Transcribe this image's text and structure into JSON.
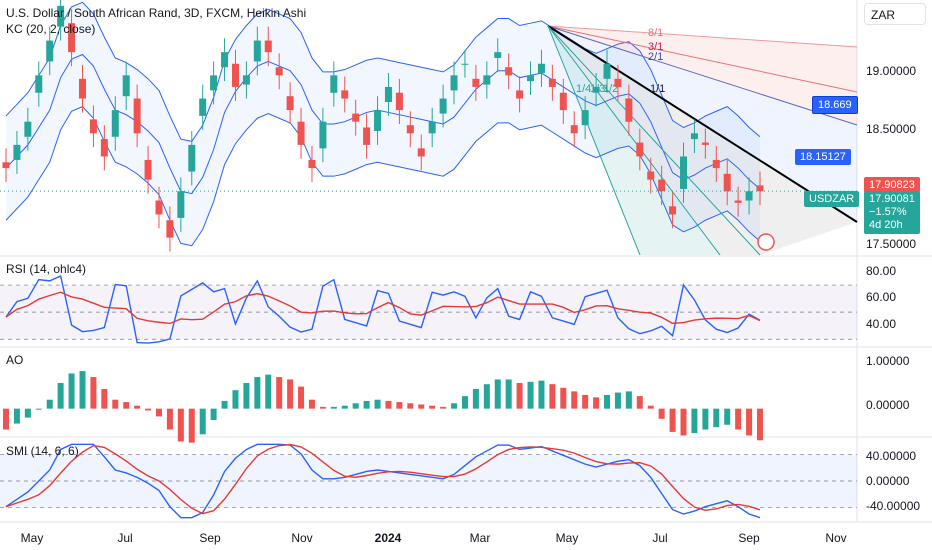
{
  "legend": {
    "title": "U.S. Dollar / South African Rand, 3D, FXCM, Heikin Ashi",
    "kc": "KC (20, 2, close)"
  },
  "currency_box": "ZAR",
  "price_axis": [
    "19.00000",
    "18.50000",
    "17.50000"
  ],
  "rsi_axis": [
    "80.00",
    "60.00",
    "40.00"
  ],
  "ao_axis": [
    "1.00000",
    "0.00000"
  ],
  "smi_axis": [
    "40.00000",
    "0.00000",
    "-40.00000"
  ],
  "x_labels": [
    "May",
    "Jul",
    "Sep",
    "Nov",
    "2024",
    "Mar",
    "May",
    "Jul",
    "Sep",
    "Nov"
  ],
  "tags": {
    "fib_top": "18.669",
    "fib_mid": "18.15127",
    "last_close": "17.90823",
    "symbol": "USDZAR",
    "price_now": "17.90081",
    "change": "−1.57%",
    "countdown": "4d 20h"
  },
  "fan_labels": [
    "8/1",
    "3/1",
    "2/1",
    "1/1",
    "1/4",
    "1/3",
    "1/2"
  ],
  "pane_labels": {
    "rsi": "RSI (14, ohlc4)",
    "ao": "AO",
    "smi": "SMI (14, 6, 6)"
  },
  "colors": {
    "up": "#26a69a",
    "down": "#ef5350",
    "kc": "#2962ff",
    "rsi_ma": "#e53935"
  },
  "chart_data": {
    "type": "candlestick",
    "title": "U.S. Dollar / South African Rand, 3D, FXCM, Heikin Ashi",
    "x_ticks": [
      "May",
      "Jul",
      "Sep",
      "Nov",
      "2024",
      "Mar",
      "May",
      "Jul",
      "Sep",
      "Nov"
    ],
    "y_range": [
      17.35,
      19.55
    ],
    "close_series": [
      18.1,
      18.3,
      18.5,
      18.9,
      19.2,
      19.5,
      19.1,
      18.7,
      18.4,
      18.2,
      18.6,
      18.9,
      18.4,
      18.0,
      17.7,
      17.5,
      17.9,
      18.3,
      18.7,
      18.9,
      19.1,
      18.8,
      18.9,
      19.2,
      19.1,
      18.9,
      18.6,
      18.3,
      18.1,
      18.5,
      18.9,
      18.7,
      18.5,
      18.3,
      18.6,
      18.8,
      18.6,
      18.4,
      18.2,
      18.5,
      18.7,
      18.9,
      19.0,
      18.8,
      18.9,
      19.1,
      18.9,
      18.7,
      18.9,
      19.0,
      18.8,
      18.6,
      18.4,
      18.6,
      18.8,
      19.0,
      18.8,
      18.5,
      18.2,
      18.0,
      17.9,
      17.7,
      18.2,
      18.4,
      18.3,
      18.1,
      17.9,
      17.8,
      17.9,
      17.9
    ],
    "last_value": 17.90081,
    "fib_levels": {
      "18.669": 18.669,
      "18.15127": 18.15127
    },
    "rsi": {
      "range": [
        25,
        90
      ],
      "levels": [
        80,
        60,
        40
      ]
    },
    "ao": {
      "range": [
        -0.55,
        1.2
      ]
    },
    "smi": {
      "range": [
        -60,
        60
      ],
      "levels": [
        40,
        0,
        -40
      ]
    }
  }
}
